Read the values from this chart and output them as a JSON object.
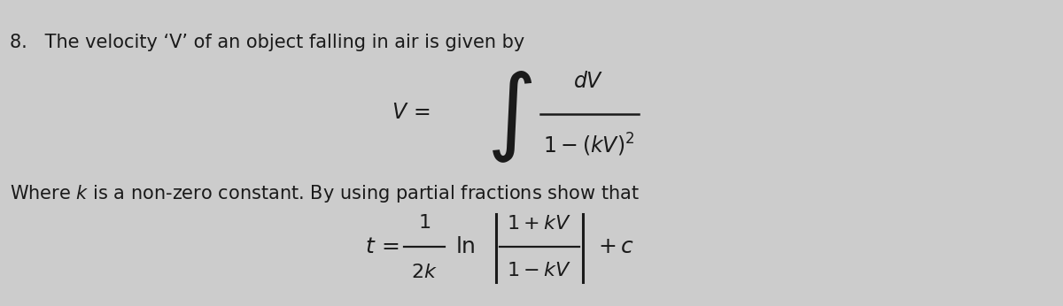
{
  "background_color": "#c8c8c8",
  "text_color": "#1a1a1a",
  "figsize": [
    12.0,
    3.46
  ],
  "dpi": 100,
  "line1": "8.   The velocity ‘V’ of an object falling in air is given by",
  "line3": "Where $k$ is a non-zero constant. By using partial fractions show that",
  "bg_color_hex": "#c9c9c9"
}
